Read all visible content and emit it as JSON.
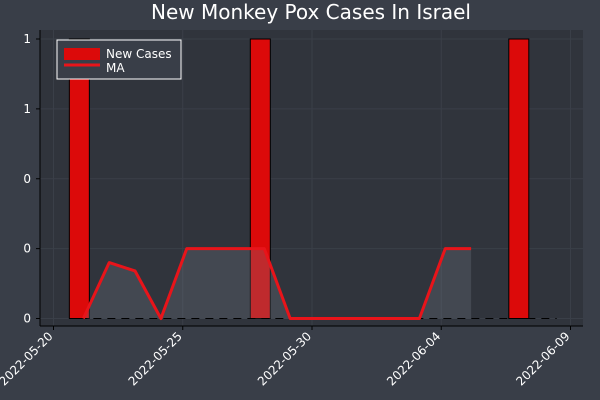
{
  "chart_data": {
    "type": "bar",
    "title": "New Monkey Pox Cases In Israel",
    "xlabel": "",
    "ylabel": "",
    "x_tick_labels": [
      "2022-05-20",
      "2022-05-25",
      "2022-05-30",
      "2022-06-04",
      "2022-06-09"
    ],
    "y_tick_labels": [
      "0",
      "0",
      "0",
      "1",
      "1"
    ],
    "ylim": [
      0,
      1
    ],
    "grid": true,
    "legend_position": "top-left",
    "series": [
      {
        "name": "New Cases",
        "type": "bar",
        "color": "#dc0a0a",
        "dates": [
          "2022-05-21",
          "2022-05-28",
          "2022-06-07"
        ],
        "values": [
          1,
          1,
          1
        ]
      },
      {
        "name": "MA",
        "type": "line",
        "color": "#e8141a",
        "dates": [
          "2022-05-21",
          "2022-05-22",
          "2022-05-23",
          "2022-05-24",
          "2022-05-25",
          "2022-05-26",
          "2022-05-27",
          "2022-05-28",
          "2022-05-29",
          "2022-05-30",
          "2022-05-31",
          "2022-06-01",
          "2022-06-02",
          "2022-06-03",
          "2022-06-04",
          "2022-06-05"
        ],
        "values": [
          0,
          0.2,
          0.17,
          0,
          0.25,
          0.25,
          0.25,
          0.25,
          0,
          0,
          0,
          0,
          0,
          0,
          0.25,
          0.25
        ]
      }
    ]
  }
}
